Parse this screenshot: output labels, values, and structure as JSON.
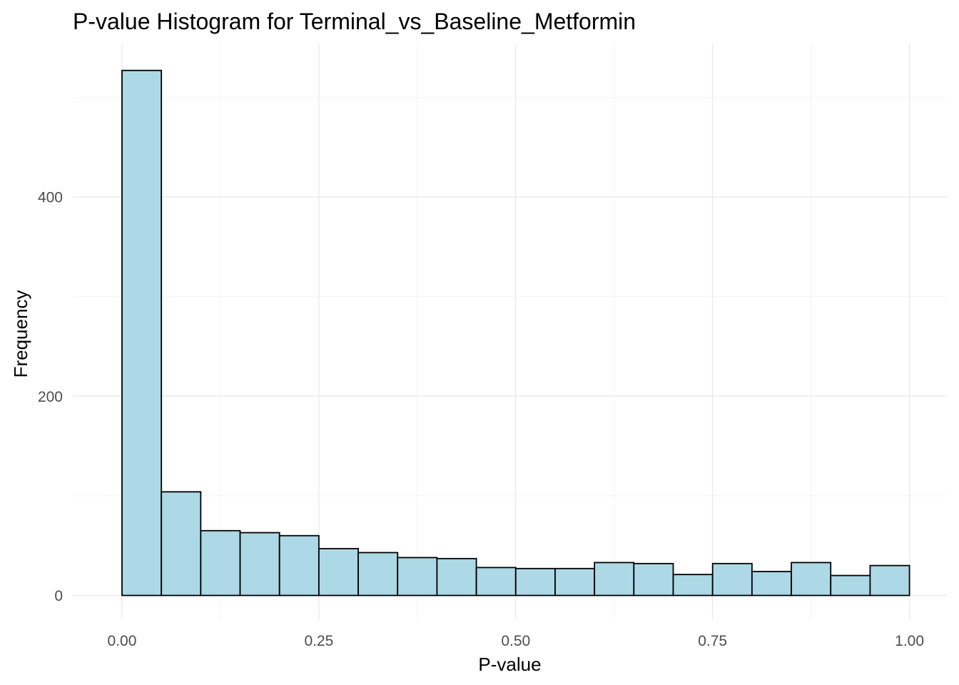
{
  "chart_data": {
    "type": "bar",
    "title": "P-value Histogram for Terminal_vs_Baseline_Metformin",
    "xlabel": "P-value",
    "ylabel": "Frequency",
    "bin_edges": [
      0.0,
      0.05,
      0.1,
      0.15,
      0.2,
      0.25,
      0.3,
      0.35,
      0.4,
      0.45,
      0.5,
      0.55,
      0.6,
      0.65,
      0.7,
      0.75,
      0.8,
      0.85,
      0.9,
      0.95,
      1.0
    ],
    "values": [
      527,
      104,
      65,
      63,
      60,
      47,
      43,
      38,
      37,
      28,
      27,
      27,
      33,
      32,
      21,
      32,
      24,
      33,
      20,
      30
    ],
    "xlim": [
      -0.0625,
      1.0475
    ],
    "ylim": [
      -24,
      554
    ],
    "x_ticks": [
      0.0,
      0.25,
      0.5,
      0.75,
      1.0
    ],
    "x_tick_labels": [
      "0.00",
      "0.25",
      "0.50",
      "0.75",
      "1.00"
    ],
    "y_ticks": [
      0,
      200,
      400
    ],
    "y_tick_labels": [
      "0",
      "200",
      "400"
    ],
    "x_minor_ticks": [
      0.125,
      0.375,
      0.625,
      0.875
    ],
    "y_minor_ticks": [
      100,
      300,
      500
    ],
    "grid": true,
    "bar_fill": "#add8e6",
    "bar_outline": "#000000"
  }
}
